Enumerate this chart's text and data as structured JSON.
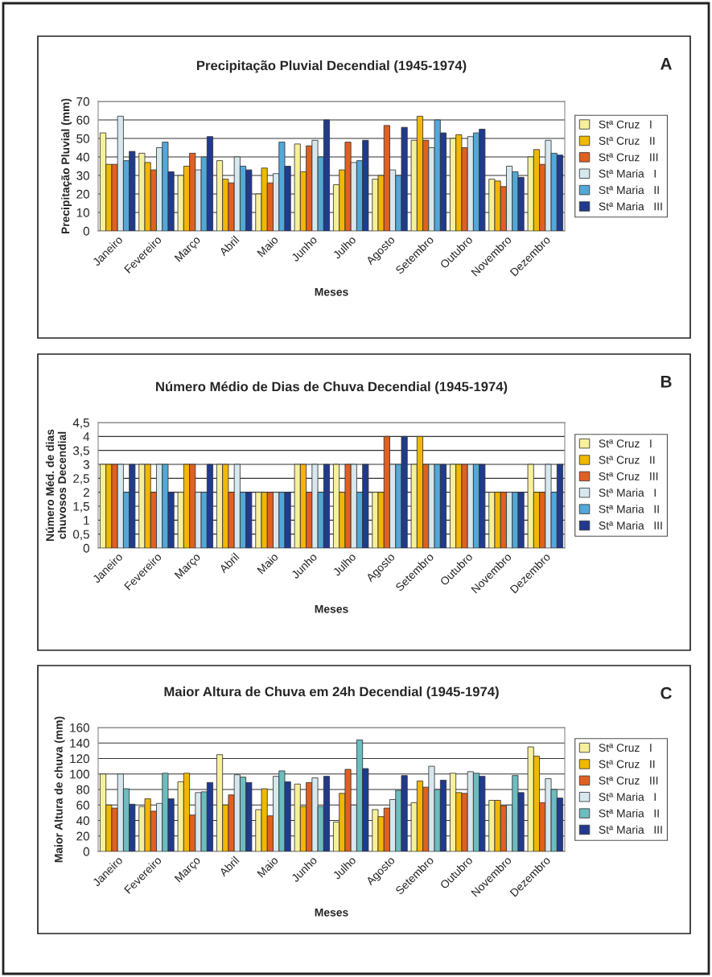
{
  "chart_data": [
    {
      "type": "bar",
      "title": "Precipitação Pluvial Decendial (1945-1974)",
      "xlabel": "Meses",
      "ylabel": "Precipitação Pluvial (mm)",
      "annotations": [
        "A"
      ],
      "categories": [
        "Janeiro",
        "Fevereiro",
        "Março",
        "Abril",
        "Maio",
        "Junho",
        "Julho",
        "Agosto",
        "Setembro",
        "Outubro",
        "Novembro",
        "Dezembro"
      ],
      "ylim": [
        0,
        70
      ],
      "yticks": [
        0,
        10,
        20,
        30,
        40,
        50,
        60,
        70
      ],
      "grid": "y",
      "legend": "right",
      "series": [
        {
          "name": "Stª Cruz   I",
          "color": "#f7f09a",
          "values": [
            53,
            42,
            30,
            38,
            20,
            47,
            25,
            28,
            49,
            50,
            28,
            40
          ]
        },
        {
          "name": "Stª Cruz   II",
          "color": "#f2b705",
          "values": [
            36,
            37,
            35,
            28,
            34,
            32,
            33,
            30,
            62,
            52,
            27,
            44
          ]
        },
        {
          "name": "Stª Cruz   III",
          "color": "#e06020",
          "values": [
            36,
            33,
            42,
            26,
            26,
            46,
            48,
            57,
            49,
            45,
            24,
            36
          ]
        },
        {
          "name": "Stª Maria   I",
          "color": "#d6e8ee",
          "values": [
            62,
            45,
            33,
            40,
            31,
            49,
            37,
            33,
            45,
            51,
            35,
            49
          ]
        },
        {
          "name": "Stª Maria   II",
          "color": "#52a8d8",
          "values": [
            38,
            48,
            40,
            35,
            48,
            40,
            38,
            30,
            60,
            53,
            32,
            42
          ]
        },
        {
          "name": "Stª Maria   III",
          "color": "#203a8c",
          "values": [
            43,
            32,
            51,
            33,
            35,
            60,
            49,
            56,
            53,
            55,
            29,
            41
          ]
        }
      ]
    },
    {
      "type": "bar",
      "title": "Número Médio de Dias de Chuva Decendial (1945-1974)",
      "xlabel": "Meses",
      "ylabel": "Número Méd. de dias\nchuvosos Decendial",
      "annotations": [
        "B"
      ],
      "categories": [
        "Janeiro",
        "Fevereiro",
        "Março",
        "Abril",
        "Maio",
        "Junho",
        "Julho",
        "Agosto",
        "Setembro",
        "Outubro",
        "Novembro",
        "Dezembro"
      ],
      "ylim": [
        0,
        4.5
      ],
      "yticks": [
        0,
        {
          "value": 0.5,
          "label": "0,5"
        },
        1,
        {
          "value": 1.5,
          "label": "1,5"
        },
        2,
        {
          "value": 2.5,
          "label": "2,5"
        },
        3,
        {
          "value": 3.5,
          "label": "3,5"
        },
        4,
        {
          "value": 4.5,
          "label": "4,5"
        }
      ],
      "grid": "y",
      "legend": "right",
      "series": [
        {
          "name": "Stª Cruz   I",
          "color": "#f7f09a",
          "values": [
            3,
            3,
            2,
            3,
            2,
            3,
            3,
            2,
            3,
            3,
            2,
            3
          ]
        },
        {
          "name": "Stª Cruz   II",
          "color": "#f2b705",
          "values": [
            3,
            3,
            3,
            3,
            2,
            3,
            2,
            2,
            4,
            3,
            2,
            2
          ]
        },
        {
          "name": "Stª Cruz   III",
          "color": "#e06020",
          "values": [
            3,
            2,
            3,
            2,
            2,
            2,
            3,
            4,
            3,
            3,
            2,
            2
          ]
        },
        {
          "name": "Stª Maria   I",
          "color": "#d6e8ee",
          "values": [
            3,
            3,
            2,
            3,
            2,
            3,
            3,
            3,
            3,
            3,
            2,
            3
          ]
        },
        {
          "name": "Stª Maria   II",
          "color": "#52a8d8",
          "values": [
            2,
            3,
            2,
            2,
            2,
            2,
            2,
            3,
            3,
            3,
            2,
            2
          ]
        },
        {
          "name": "Stª Maria   III",
          "color": "#203a8c",
          "values": [
            3,
            2,
            3,
            2,
            2,
            3,
            3,
            4,
            3,
            3,
            2,
            3
          ]
        }
      ]
    },
    {
      "type": "bar",
      "title": "Maior Altura de Chuva em 24h Decendial (1945-1974)",
      "xlabel": "Meses",
      "ylabel": "Maior Altura de chuva (mm)",
      "annotations": [
        "C"
      ],
      "categories": [
        "Janeiro",
        "Fevereiro",
        "Março",
        "Abril",
        "Maio",
        "Junho",
        "Julho",
        "Agosto",
        "Setembro",
        "Outubro",
        "Novembro",
        "Dezembro"
      ],
      "ylim": [
        0,
        160
      ],
      "yticks": [
        0,
        20,
        40,
        60,
        80,
        100,
        120,
        140,
        160
      ],
      "grid": "y",
      "legend": "right",
      "series": [
        {
          "name": "Stª Cruz   I",
          "color": "#f7f09a",
          "values": [
            100,
            58,
            90,
            125,
            54,
            87,
            38,
            54,
            63,
            101,
            66,
            135
          ]
        },
        {
          "name": "Stª Cruz   II",
          "color": "#f2b705",
          "values": [
            60,
            68,
            101,
            60,
            81,
            58,
            75,
            45,
            91,
            76,
            66,
            123
          ]
        },
        {
          "name": "Stª Cruz   III",
          "color": "#e06020",
          "values": [
            56,
            52,
            47,
            73,
            46,
            89,
            106,
            56,
            83,
            75,
            59,
            63
          ]
        },
        {
          "name": "Stª Maria   I",
          "color": "#d6e8ee",
          "values": [
            100,
            62,
            76,
            99,
            97,
            95,
            60,
            67,
            110,
            103,
            60,
            94
          ]
        },
        {
          "name": "Stª Maria   II",
          "color": "#6cbcc0",
          "values": [
            81,
            101,
            77,
            96,
            104,
            58,
            144,
            79,
            80,
            101,
            98,
            80
          ]
        },
        {
          "name": "Stª Maria   III",
          "color": "#203a8c",
          "values": [
            61,
            68,
            89,
            89,
            90,
            97,
            107,
            98,
            92,
            97,
            76,
            69
          ]
        }
      ]
    }
  ]
}
